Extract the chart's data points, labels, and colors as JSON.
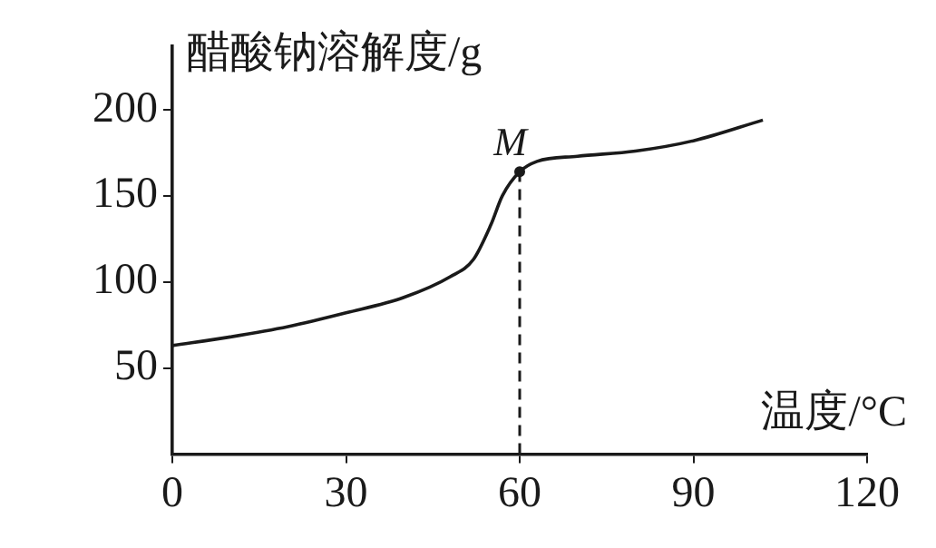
{
  "chart_data": {
    "type": "line",
    "xlabel": "温度/°C",
    "ylabel": "醋酸钠溶解度/g",
    "x": [
      0,
      10,
      20,
      30,
      40,
      48,
      52,
      55,
      57,
      60,
      63,
      70,
      80,
      90,
      102
    ],
    "series": [
      {
        "color": "#1a1a1a",
        "values": [
          63,
          68,
          74,
          82,
          91,
          103,
          113,
          133,
          150,
          164,
          170,
          173,
          176,
          182,
          194
        ]
      }
    ],
    "xlim": [
      0,
      120
    ],
    "xticks": [
      0,
      30,
      60,
      90,
      120
    ],
    "ylim": [
      0,
      237
    ],
    "yticks": [
      50,
      100,
      150,
      200
    ],
    "grid": false,
    "legend": false,
    "marker": "none",
    "line_style": "solid",
    "ref_lines": [
      {
        "axis": "x",
        "value": 60,
        "line_style": "dashed"
      }
    ],
    "annotations": [
      {
        "text": "M",
        "x": 60,
        "y": 164
      }
    ]
  }
}
